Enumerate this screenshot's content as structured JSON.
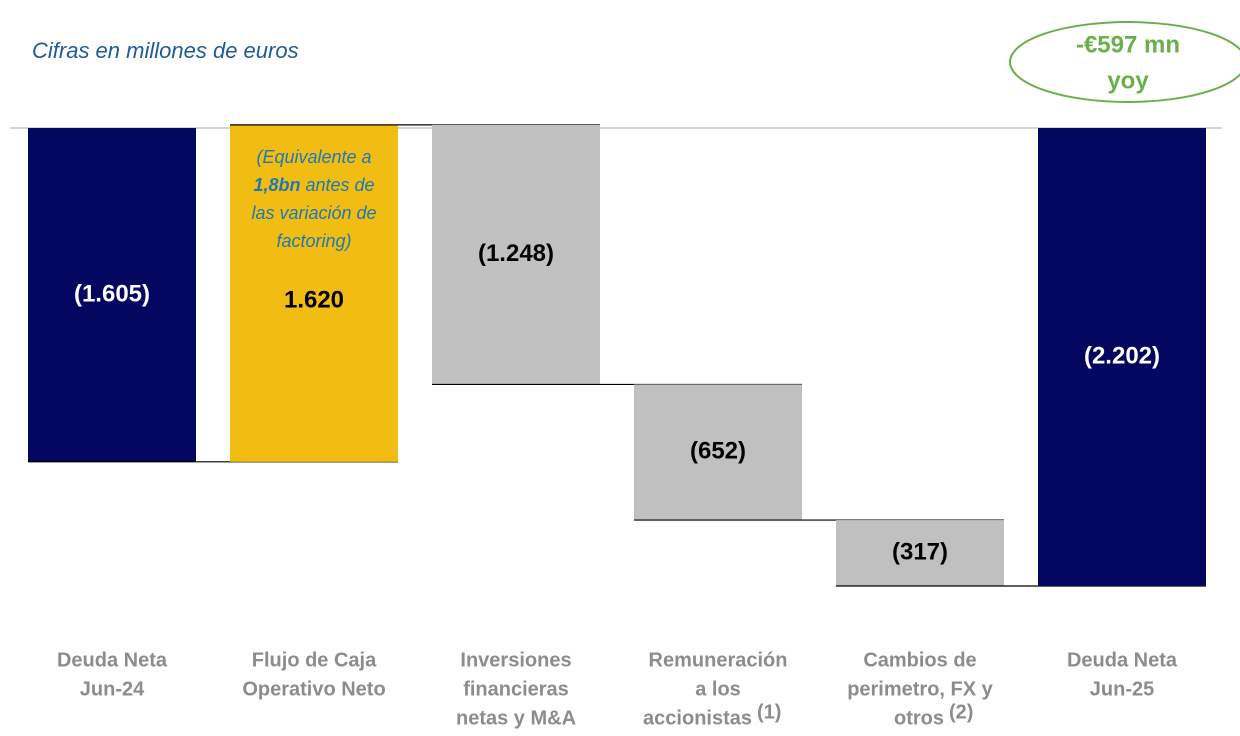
{
  "chart_data": {
    "type": "waterfall",
    "subtitle": "Cifras en millones de euros",
    "callout": [
      "-€597 mn",
      "yoy"
    ],
    "bar_note": [
      "(Equivalente a",
      "1,8bn",
      " antes de",
      "las variación de",
      "factoring)"
    ],
    "categories": [
      [
        "Deuda Neta",
        "Jun-24"
      ],
      [
        "Flujo de Caja",
        "Operativo Neto"
      ],
      [
        "Inversiones",
        "financieras",
        "netas y M&A"
      ],
      [
        "Remuneración",
        "a los",
        "accionistas"
      ],
      [
        "Cambios de",
        "perimetro, FX y",
        "otros"
      ],
      [
        "Deuda Neta",
        "Jun-25"
      ]
    ],
    "category_notes": [
      null,
      null,
      null,
      "(1)",
      "(2)",
      null
    ],
    "values": [
      -1605,
      1620,
      -1248,
      -652,
      -317,
      -2202
    ],
    "value_labels": [
      "(1.605)",
      "1.620",
      "(1.248)",
      "(652)",
      "(317)",
      "(2.202)"
    ],
    "colors": [
      "#04075f",
      "#f2bd12",
      "#c0c0c0",
      "#c0c0c0",
      "#c0c0c0",
      "#04075f"
    ]
  }
}
